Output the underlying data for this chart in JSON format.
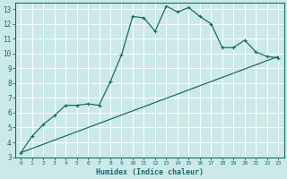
{
  "xlabel": "Humidex (Indice chaleur)",
  "background_color": "#cce9e9",
  "grid_color": "#ffffff",
  "line_color": "#1a6b6b",
  "xlim": [
    -0.5,
    23.5
  ],
  "ylim": [
    3,
    13.4
  ],
  "xticks": [
    0,
    1,
    2,
    3,
    4,
    5,
    6,
    7,
    8,
    9,
    10,
    11,
    12,
    13,
    14,
    15,
    16,
    17,
    18,
    19,
    20,
    21,
    22,
    23
  ],
  "yticks": [
    3,
    4,
    5,
    6,
    7,
    8,
    9,
    10,
    11,
    12,
    13
  ],
  "curve1_x": [
    0,
    1,
    2,
    3,
    4,
    5,
    6,
    7,
    8,
    9,
    10,
    11,
    12,
    13,
    14,
    15,
    16,
    17,
    18,
    19,
    20,
    21,
    22,
    23
  ],
  "curve1_y": [
    3.3,
    4.4,
    5.2,
    5.8,
    6.5,
    6.5,
    6.6,
    6.5,
    8.1,
    9.9,
    12.5,
    12.4,
    11.5,
    13.2,
    12.8,
    13.1,
    12.5,
    12.0,
    10.4,
    10.4,
    10.9,
    10.1,
    9.8,
    9.7
  ],
  "curve2_x": [
    0,
    23
  ],
  "curve2_y": [
    3.3,
    9.8
  ],
  "xlabel_fontsize": 6,
  "xtick_fontsize": 4.5,
  "ytick_fontsize": 5.5
}
